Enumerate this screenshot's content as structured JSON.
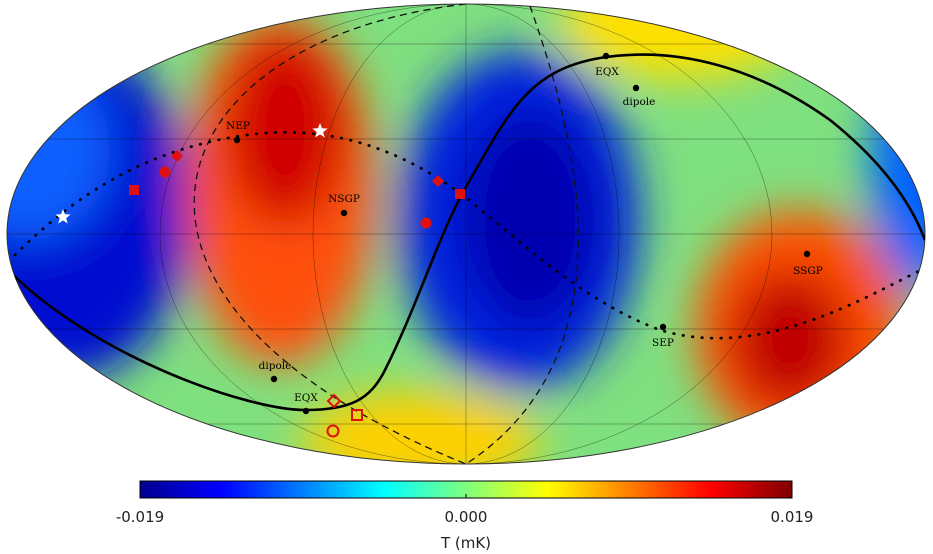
{
  "map": {
    "projection": "mollweide",
    "colors": {
      "cold": "#0000a0",
      "mid": "#7fff7f",
      "hot": "#a00000"
    },
    "points": [
      {
        "label": "NEP",
        "mark": "dot"
      },
      {
        "label": "NSGP",
        "mark": "dot"
      },
      {
        "label": "EQX",
        "mark": "dot"
      },
      {
        "label": "dipole",
        "mark": "dot"
      },
      {
        "label": "dipole",
        "mark": "dot"
      },
      {
        "label": "EQX",
        "mark": "dot"
      },
      {
        "label": "SSGP",
        "mark": "dot"
      },
      {
        "label": "SEP",
        "mark": "dot"
      }
    ],
    "markers": [
      {
        "shape": "star-white",
        "name": "white-star-marker"
      },
      {
        "shape": "star-white",
        "name": "white-star-marker"
      },
      {
        "shape": "square-filled",
        "name": "red-square-marker"
      },
      {
        "shape": "circle-filled",
        "name": "red-circle-marker"
      },
      {
        "shape": "diamond-filled",
        "name": "red-diamond-marker"
      },
      {
        "shape": "diamond-filled",
        "name": "red-diamond-marker"
      },
      {
        "shape": "square-filled",
        "name": "red-square-marker"
      },
      {
        "shape": "circle-filled",
        "name": "red-circle-marker"
      },
      {
        "shape": "diamond-open",
        "name": "red-diamond-outline-marker"
      },
      {
        "shape": "square-open",
        "name": "red-square-outline-marker"
      },
      {
        "shape": "circle-open",
        "name": "red-circle-outline-marker"
      }
    ]
  },
  "colorbar": {
    "title": "T (mK)",
    "ticks": [
      "-0.019",
      "0.000",
      "0.019"
    ],
    "min": -0.019,
    "max": 0.019
  }
}
